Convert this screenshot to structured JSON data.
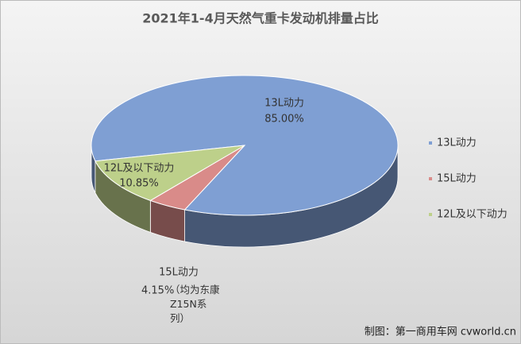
{
  "chart_data": {
    "type": "pie3d",
    "title": "2021年1-4月天然气重卡发动机排量占比",
    "categories": [
      "13L动力",
      "15L动力",
      "12L及以下动力"
    ],
    "values": [
      85.0,
      4.15,
      10.85
    ],
    "value_labels": [
      "85.00%",
      "4.15%",
      "10.85%"
    ],
    "colors": [
      "#7f9fd3",
      "#d98b89",
      "#bdd08a"
    ],
    "annotation": "（均为东康Z15N系列）",
    "legend": "right",
    "source": "制图：第一商用车网 cvworld.cn"
  }
}
